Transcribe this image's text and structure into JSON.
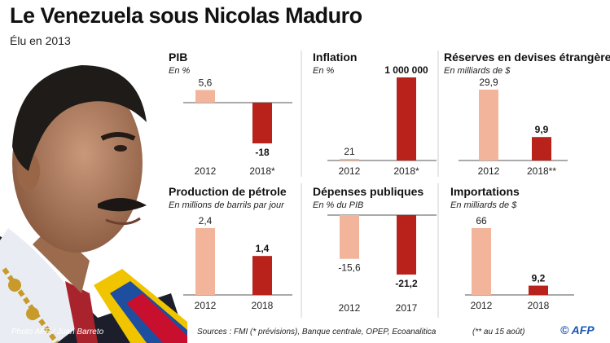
{
  "title": "Le Venezuela sous Nicolas Maduro",
  "subtitle": "Élu en 2013",
  "photo_credit": "Photo AFP / Juan Barreto",
  "sources": "Sources : FMI (* prévisions), Banque centrale, OPEP, Ecoanalitica",
  "footnote": "(** au 15 août)",
  "logo_text": "© AFP",
  "colors": {
    "light": "#f2b49a",
    "dark": "#b8221b",
    "axis": "#555555"
  },
  "chart_data": [
    {
      "type": "bar",
      "title": "PIB",
      "unit": "En %",
      "categories": [
        "2012",
        "2018*"
      ],
      "values": [
        5.6,
        -18
      ],
      "labels": [
        "5,6",
        "-18"
      ],
      "ylim": [
        -18,
        5.6
      ]
    },
    {
      "type": "bar",
      "title": "Inflation",
      "unit": "En %",
      "categories": [
        "2012",
        "2018*"
      ],
      "values": [
        21,
        1000000
      ],
      "labels": [
        "21",
        "1 000 000"
      ],
      "ylim": [
        0,
        1000000
      ]
    },
    {
      "type": "bar",
      "title": "Réserves en devises étrangères",
      "unit": "En milliards de $",
      "categories": [
        "2012",
        "2018**"
      ],
      "values": [
        29.9,
        9.9
      ],
      "labels": [
        "29,9",
        "9,9"
      ],
      "ylim": [
        0,
        29.9
      ]
    },
    {
      "type": "bar",
      "title": "Production de pétrole",
      "unit": "En millions de barrils par jour",
      "categories": [
        "2012",
        "2018"
      ],
      "values": [
        2.4,
        1.4
      ],
      "labels": [
        "2,4",
        "1,4"
      ],
      "ylim": [
        0,
        2.4
      ]
    },
    {
      "type": "bar",
      "title": "Dépenses publiques",
      "unit": "En % du PIB",
      "categories": [
        "2012",
        "2017"
      ],
      "values": [
        -15.6,
        -21.2
      ],
      "labels": [
        "-15,6",
        "-21,2"
      ],
      "ylim": [
        -21.2,
        0
      ]
    },
    {
      "type": "bar",
      "title": "Importations",
      "unit": "En milliards de $",
      "categories": [
        "2012",
        "2018"
      ],
      "values": [
        66,
        9.2
      ],
      "labels": [
        "66",
        "9,2"
      ],
      "ylim": [
        0,
        66
      ]
    }
  ]
}
